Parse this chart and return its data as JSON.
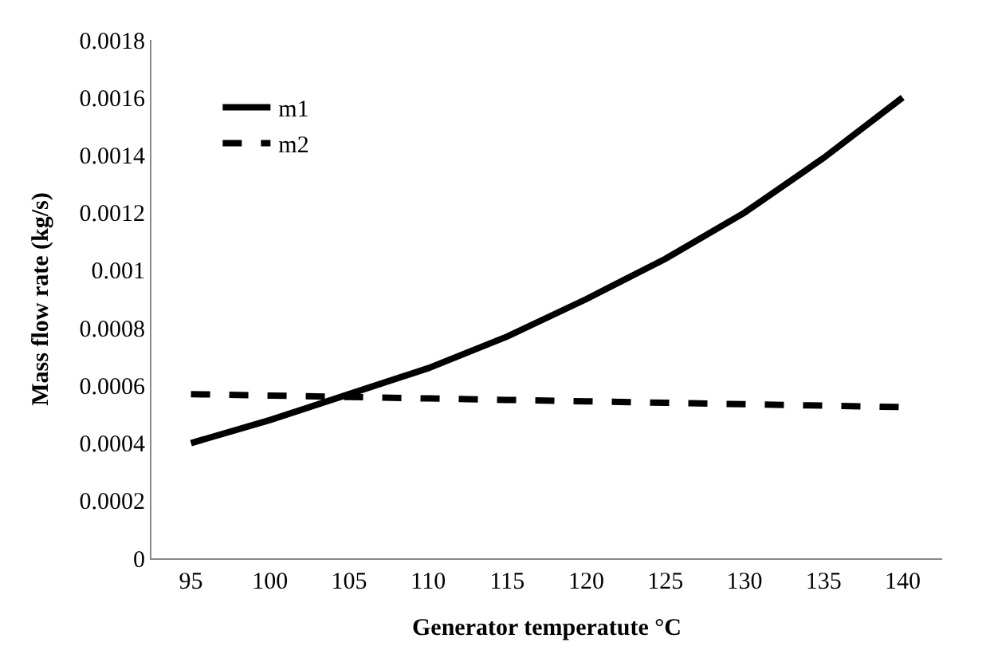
{
  "chart_data": {
    "type": "line",
    "xlabel": "Generator temperatute °C",
    "ylabel": "Mass flow rate (kg/s)",
    "categories": [
      "95",
      "100",
      "105",
      "110",
      "115",
      "120",
      "125",
      "130",
      "135",
      "140"
    ],
    "series": [
      {
        "name": "m1",
        "color": "#000000",
        "line_style": "solid",
        "values": [
          0.0004,
          0.00048,
          0.00057,
          0.00066,
          0.00077,
          0.0009,
          0.00104,
          0.0012,
          0.00139,
          0.0016
        ]
      },
      {
        "name": "m2",
        "color": "#000000",
        "line_style": "dashed",
        "values": [
          0.00057,
          0.000565,
          0.00056,
          0.000555,
          0.00055,
          0.000545,
          0.00054,
          0.000535,
          0.00053,
          0.000525
        ]
      }
    ],
    "ylim": [
      0,
      0.0018
    ],
    "yticks": [
      0,
      0.0002,
      0.0004,
      0.0006,
      0.0008,
      0.001,
      0.0012,
      0.0014,
      0.0016,
      0.0018
    ],
    "grid": false,
    "legend": "top left",
    "marker": "none"
  }
}
